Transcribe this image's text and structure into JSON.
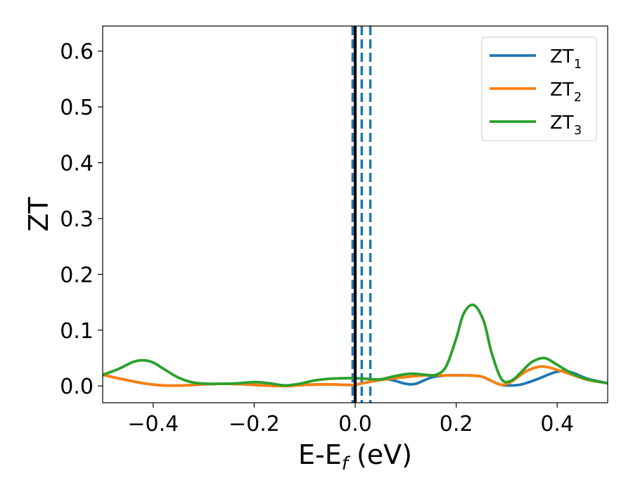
{
  "chart_data": {
    "type": "line",
    "xlabel": "E-E",
    "xlabel_sub": "f",
    "xlabel_unit": " (eV)",
    "ylabel": "ZT",
    "xlim": [
      -0.5,
      0.5
    ],
    "ylim": [
      -0.03,
      0.645
    ],
    "xticks": [
      -0.4,
      -0.2,
      0.0,
      0.2,
      0.4
    ],
    "xtick_labels": [
      "−0.4",
      "−0.2",
      "0.0",
      "0.2",
      "0.4"
    ],
    "yticks": [
      0.0,
      0.1,
      0.2,
      0.3,
      0.4,
      0.5,
      0.6
    ],
    "ytick_labels": [
      "0.0",
      "0.1",
      "0.2",
      "0.3",
      "0.4",
      "0.5",
      "0.6"
    ],
    "grid": false,
    "legend_position": "top-right",
    "vlines": [
      {
        "x": 0.0,
        "style": "solid",
        "color": "#000000"
      },
      {
        "x": -0.005,
        "style": "dashed",
        "color": "#1f77b4"
      },
      {
        "x": 0.013,
        "style": "dashed",
        "color": "#1f77b4"
      },
      {
        "x": 0.03,
        "style": "dashed",
        "color": "#1f77b4"
      }
    ],
    "series": [
      {
        "name": "ZT",
        "name_sub": "1",
        "color": "#1f77b4",
        "x": [
          -0.5,
          -0.46,
          -0.42,
          -0.38,
          -0.34,
          -0.3,
          -0.26,
          -0.22,
          -0.18,
          -0.14,
          -0.1,
          -0.06,
          -0.02,
          0.0,
          0.02,
          0.06,
          0.08,
          0.1,
          0.12,
          0.15,
          0.18,
          0.22,
          0.25,
          0.27,
          0.29,
          0.31,
          0.33,
          0.36,
          0.39,
          0.41,
          0.43,
          0.46,
          0.5
        ],
        "y": [
          0.02,
          0.012,
          0.005,
          0.001,
          0.001,
          0.003,
          0.004,
          0.003,
          0.001,
          0.0,
          0.002,
          0.003,
          0.002,
          0.002,
          0.006,
          0.012,
          0.009,
          0.004,
          0.004,
          0.015,
          0.019,
          0.019,
          0.017,
          0.009,
          0.002,
          0.001,
          0.003,
          0.012,
          0.023,
          0.027,
          0.024,
          0.013,
          0.005
        ]
      },
      {
        "name": "ZT",
        "name_sub": "2",
        "color": "#ff7f0e",
        "x": [
          -0.5,
          -0.46,
          -0.42,
          -0.38,
          -0.34,
          -0.3,
          -0.26,
          -0.22,
          -0.18,
          -0.14,
          -0.1,
          -0.06,
          -0.02,
          0.0,
          0.02,
          0.06,
          0.1,
          0.14,
          0.18,
          0.22,
          0.25,
          0.27,
          0.29,
          0.31,
          0.34,
          0.37,
          0.4,
          0.43,
          0.46,
          0.5
        ],
        "y": [
          0.02,
          0.012,
          0.005,
          0.001,
          0.001,
          0.003,
          0.004,
          0.003,
          0.001,
          0.0,
          0.002,
          0.003,
          0.002,
          0.002,
          0.006,
          0.012,
          0.016,
          0.019,
          0.019,
          0.019,
          0.017,
          0.009,
          0.002,
          0.008,
          0.027,
          0.035,
          0.029,
          0.02,
          0.011,
          0.005
        ]
      },
      {
        "name": "ZT",
        "name_sub": "3",
        "color": "#2ca02c",
        "x": [
          -0.5,
          -0.47,
          -0.44,
          -0.42,
          -0.4,
          -0.38,
          -0.35,
          -0.32,
          -0.29,
          -0.26,
          -0.23,
          -0.2,
          -0.17,
          -0.14,
          -0.11,
          -0.08,
          -0.05,
          -0.02,
          0.0,
          0.02,
          0.05,
          0.08,
          0.11,
          0.14,
          0.16,
          0.18,
          0.2,
          0.215,
          0.235,
          0.255,
          0.27,
          0.29,
          0.31,
          0.33,
          0.35,
          0.375,
          0.4,
          0.43,
          0.46,
          0.5
        ],
        "y": [
          0.02,
          0.03,
          0.043,
          0.046,
          0.042,
          0.031,
          0.015,
          0.006,
          0.004,
          0.004,
          0.005,
          0.007,
          0.005,
          0.001,
          0.004,
          0.01,
          0.013,
          0.014,
          0.014,
          0.013,
          0.012,
          0.018,
          0.022,
          0.02,
          0.02,
          0.035,
          0.085,
          0.13,
          0.145,
          0.115,
          0.06,
          0.012,
          0.01,
          0.026,
          0.043,
          0.05,
          0.038,
          0.022,
          0.012,
          0.005
        ]
      }
    ]
  }
}
